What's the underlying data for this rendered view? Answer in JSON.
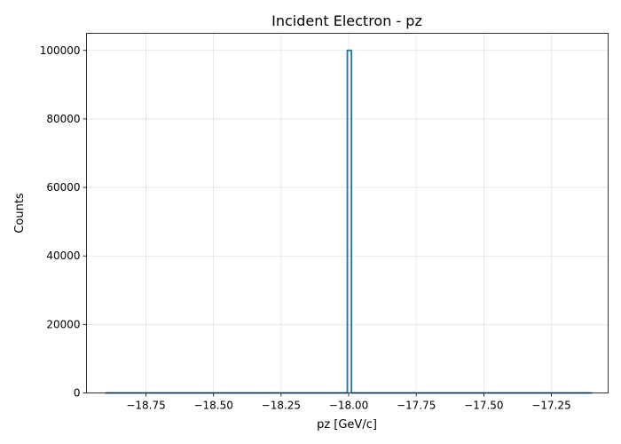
{
  "chart_data": {
    "type": "bar",
    "title": "Incident Electron - pz",
    "xlabel": "pz [GeV/c]",
    "ylabel": "Counts",
    "xlim": [
      -18.97,
      -17.04
    ],
    "ylim": [
      0,
      105000
    ],
    "x_ticks": [
      -18.75,
      -18.5,
      -18.25,
      -18.0,
      -17.75,
      -17.5,
      -17.25
    ],
    "x_tick_labels": [
      "−18.75",
      "−18.50",
      "−18.25",
      "−18.00",
      "−17.75",
      "−17.50",
      "−17.25"
    ],
    "y_ticks": [
      0,
      20000,
      40000,
      60000,
      80000,
      100000
    ],
    "y_tick_labels": [
      "0",
      "20000",
      "40000",
      "60000",
      "80000",
      "100000"
    ],
    "grid": true,
    "histtype": "step",
    "bar_color": "#1f77b4",
    "bins": [
      {
        "x0": -18.9,
        "x1": -18.005,
        "count": 0
      },
      {
        "x0": -18.005,
        "x1": -17.99,
        "count": 100000
      },
      {
        "x0": -17.99,
        "x1": -17.1,
        "count": 0
      }
    ]
  }
}
